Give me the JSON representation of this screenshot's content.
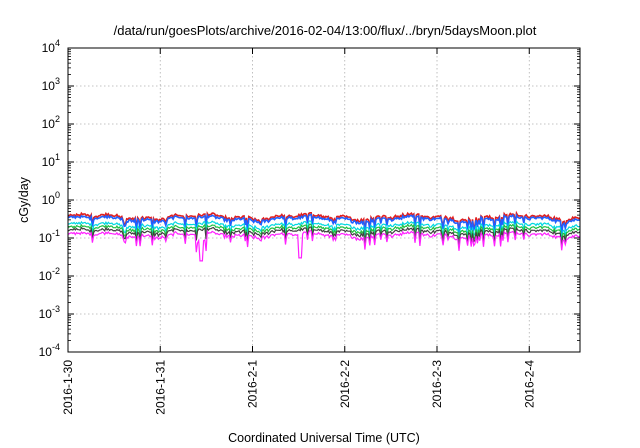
{
  "chart_data": {
    "type": "line",
    "title": "/data/run/goesPlots/archive/2016-02-04/13:00/flux/../bryn/5daysMoon.plot",
    "xlabel": "Coordinated Universal Time (UTC)",
    "ylabel": "cGy/day",
    "y_scale": "log",
    "ylim": [
      0.0001,
      10000
    ],
    "xlim": [
      0,
      5.55
    ],
    "x_ticks": [
      "2016-1-30",
      "2016-1-31",
      "2016-2-1",
      "2016-2-2",
      "2016-2-3",
      "2016-2-4"
    ],
    "y_ticks": [
      {
        "base": "10",
        "exp": "-4",
        "value": 0.0001
      },
      {
        "base": "10",
        "exp": "-3",
        "value": 0.001
      },
      {
        "base": "10",
        "exp": "-2",
        "value": 0.01
      },
      {
        "base": "10",
        "exp": "-1",
        "value": 0.1
      },
      {
        "base": "10",
        "exp": "0",
        "value": 1
      },
      {
        "base": "10",
        "exp": "1",
        "value": 10
      },
      {
        "base": "10",
        "exp": "2",
        "value": 100
      },
      {
        "base": "10",
        "exp": "3",
        "value": 1000
      },
      {
        "base": "10",
        "exp": "4",
        "value": 10000
      }
    ],
    "grid": true,
    "legend": "none",
    "series": [
      {
        "color": "#e02020",
        "level": 0.36
      },
      {
        "color": "#2060ff",
        "level": 0.32
      },
      {
        "color": "#00d8e0",
        "level": 0.22
      },
      {
        "color": "#20c040",
        "level": 0.18
      },
      {
        "color": "#404040",
        "level": 0.15
      },
      {
        "color": "#ff20ff",
        "level": 0.12
      }
    ]
  }
}
